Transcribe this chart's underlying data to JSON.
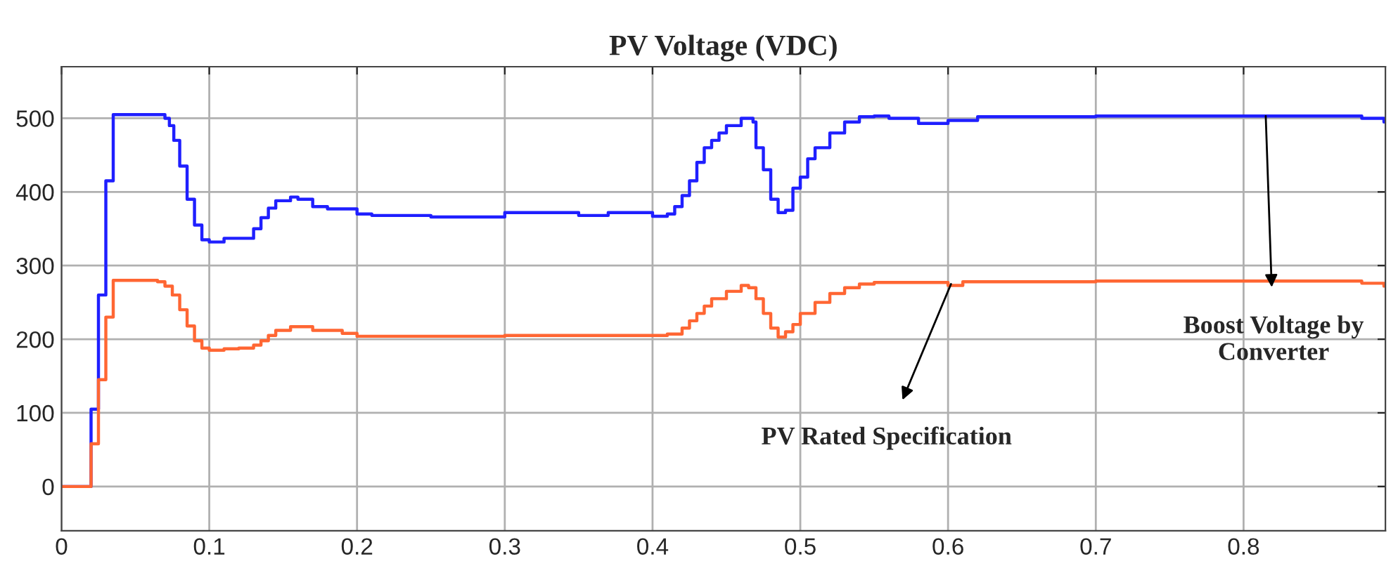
{
  "chart_data": {
    "type": "step",
    "title": "PV Voltage (VDC)",
    "xlim": [
      0,
      0.896
    ],
    "ylim": [
      -60,
      570
    ],
    "xticks": [
      0,
      0.1,
      0.2,
      0.3,
      0.4,
      0.5,
      0.6,
      0.7,
      0.8
    ],
    "yticks": [
      0,
      100,
      200,
      300,
      400,
      500
    ],
    "grid": true,
    "series": [
      {
        "color": "#1f1fff",
        "x": [
          0,
          0.02,
          0.025,
          0.03,
          0.035,
          0.068,
          0.07,
          0.073,
          0.076,
          0.08,
          0.085,
          0.09,
          0.095,
          0.1,
          0.11,
          0.12,
          0.13,
          0.135,
          0.14,
          0.145,
          0.155,
          0.16,
          0.17,
          0.18,
          0.2,
          0.21,
          0.25,
          0.3,
          0.35,
          0.37,
          0.4,
          0.41,
          0.415,
          0.42,
          0.425,
          0.43,
          0.435,
          0.44,
          0.445,
          0.45,
          0.46,
          0.468,
          0.47,
          0.475,
          0.48,
          0.485,
          0.49,
          0.495,
          0.5,
          0.505,
          0.51,
          0.52,
          0.53,
          0.54,
          0.55,
          0.56,
          0.58,
          0.6,
          0.62,
          0.7,
          0.85,
          0.87,
          0.88,
          0.895
        ],
        "values": [
          0,
          105,
          260,
          415,
          505,
          505,
          500,
          490,
          470,
          435,
          390,
          355,
          335,
          332,
          337,
          337,
          350,
          365,
          378,
          388,
          393,
          390,
          380,
          377,
          370,
          368,
          366,
          372,
          368,
          372,
          367,
          370,
          380,
          395,
          415,
          440,
          460,
          470,
          480,
          490,
          500,
          495,
          460,
          430,
          390,
          372,
          375,
          405,
          420,
          445,
          460,
          480,
          495,
          502,
          503,
          500,
          493,
          497,
          502,
          503,
          503,
          503,
          500,
          495
        ]
      },
      {
        "color": "#ff6633",
        "x": [
          0,
          0.02,
          0.025,
          0.03,
          0.035,
          0.065,
          0.07,
          0.075,
          0.08,
          0.085,
          0.09,
          0.095,
          0.1,
          0.11,
          0.12,
          0.13,
          0.135,
          0.14,
          0.145,
          0.155,
          0.17,
          0.19,
          0.2,
          0.3,
          0.4,
          0.41,
          0.42,
          0.425,
          0.43,
          0.435,
          0.44,
          0.45,
          0.46,
          0.465,
          0.47,
          0.475,
          0.48,
          0.485,
          0.49,
          0.495,
          0.5,
          0.51,
          0.52,
          0.53,
          0.54,
          0.55,
          0.6,
          0.61,
          0.7,
          0.85,
          0.88,
          0.895
        ],
        "values": [
          0,
          58,
          145,
          230,
          280,
          278,
          272,
          260,
          240,
          218,
          198,
          188,
          185,
          187,
          188,
          192,
          198,
          205,
          212,
          217,
          212,
          208,
          204,
          205,
          205,
          207,
          215,
          225,
          235,
          245,
          255,
          265,
          273,
          270,
          255,
          235,
          215,
          203,
          210,
          220,
          235,
          250,
          262,
          270,
          275,
          277,
          273,
          278,
          279,
          279,
          276,
          272
        ]
      }
    ],
    "annotations": [
      {
        "text": "Boost Voltage by\nConverter",
        "x": 0.815,
        "y": 503
      },
      {
        "text": "PV Rated Specification",
        "x": 0.602,
        "y": 275
      }
    ]
  }
}
